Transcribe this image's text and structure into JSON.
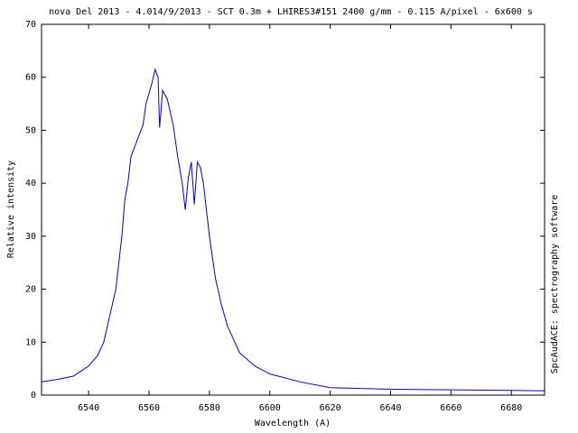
{
  "chart_data": {
    "type": "line",
    "title": "nova Del 2013 - 4.014/9/2013 - SCT 0.3m + LHIRES3#151 2400 g/mm - 0.115 A/pixel - 6x600 s",
    "x_label": "Wavelength (A)",
    "y_label": "Relative intensity",
    "side_note": "SpcAudACE: spectrography software",
    "x": [
      6524.4,
      6530,
      6535,
      6540,
      6543,
      6545,
      6547,
      6549,
      6551,
      6552,
      6553,
      6554,
      6556,
      6558,
      6559,
      6560,
      6561,
      6562,
      6563,
      6563.5,
      6564.5,
      6566,
      6568,
      6569.5,
      6571,
      6572,
      6573,
      6574,
      6575,
      6576,
      6577,
      6578,
      6580,
      6582,
      6584,
      6586,
      6588,
      6590,
      6595,
      6600,
      6610,
      6620,
      6640,
      6660,
      6680,
      6691
    ],
    "series": [
      {
        "name": "nova Del 2013",
        "color": "#0000cc",
        "values": [
          2.5,
          3.0,
          3.6,
          5.5,
          7.5,
          10,
          15,
          20,
          30,
          37,
          40,
          45,
          48,
          51,
          55,
          57,
          59,
          61.5,
          60,
          50.5,
          57.5,
          56,
          51,
          45,
          40,
          35,
          41,
          44,
          36,
          44,
          43,
          40,
          30,
          22,
          17,
          13,
          10.5,
          8,
          5.5,
          4,
          2.5,
          1.4,
          1.1,
          1.0,
          0.9,
          0.8
        ]
      }
    ],
    "xlim": [
      6524.4,
      6691
    ],
    "ylim": [
      0,
      70
    ],
    "xticks": [
      6540,
      6560,
      6580,
      6600,
      6620,
      6640,
      6660,
      6680
    ],
    "yticks": [
      0,
      10,
      20,
      30,
      40,
      50,
      60,
      70
    ]
  }
}
